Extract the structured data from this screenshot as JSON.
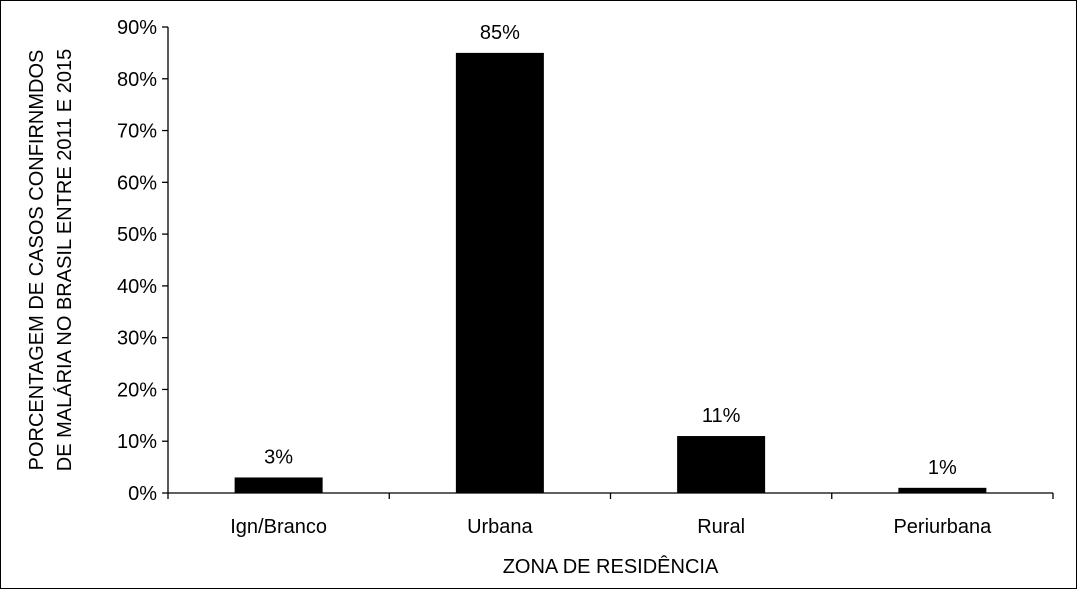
{
  "chart_data": {
    "type": "bar",
    "title": "",
    "xlabel": "ZONA DE RESIDÊNCIA",
    "ylabel": [
      "PORCENTAGEM DE CASOS CONFIRNMDOS",
      "DE MALÁRIA NO BRASIL ENTRE 2011 E 2015"
    ],
    "categories": [
      "Ign/Branco",
      "Urbana",
      "Rural",
      "Periurbana"
    ],
    "values": [
      3,
      85,
      11,
      1
    ],
    "value_labels": [
      "3%",
      "85%",
      "11%",
      "1%"
    ],
    "ylim": [
      0,
      90
    ],
    "yticks": [
      0,
      10,
      20,
      30,
      40,
      50,
      60,
      70,
      80,
      90
    ],
    "ytick_labels": [
      "0%",
      "10%",
      "20%",
      "30%",
      "40%",
      "50%",
      "60%",
      "70%",
      "80%",
      "90%"
    ],
    "grid": false,
    "legend": "none",
    "bar_color": "#000000"
  }
}
